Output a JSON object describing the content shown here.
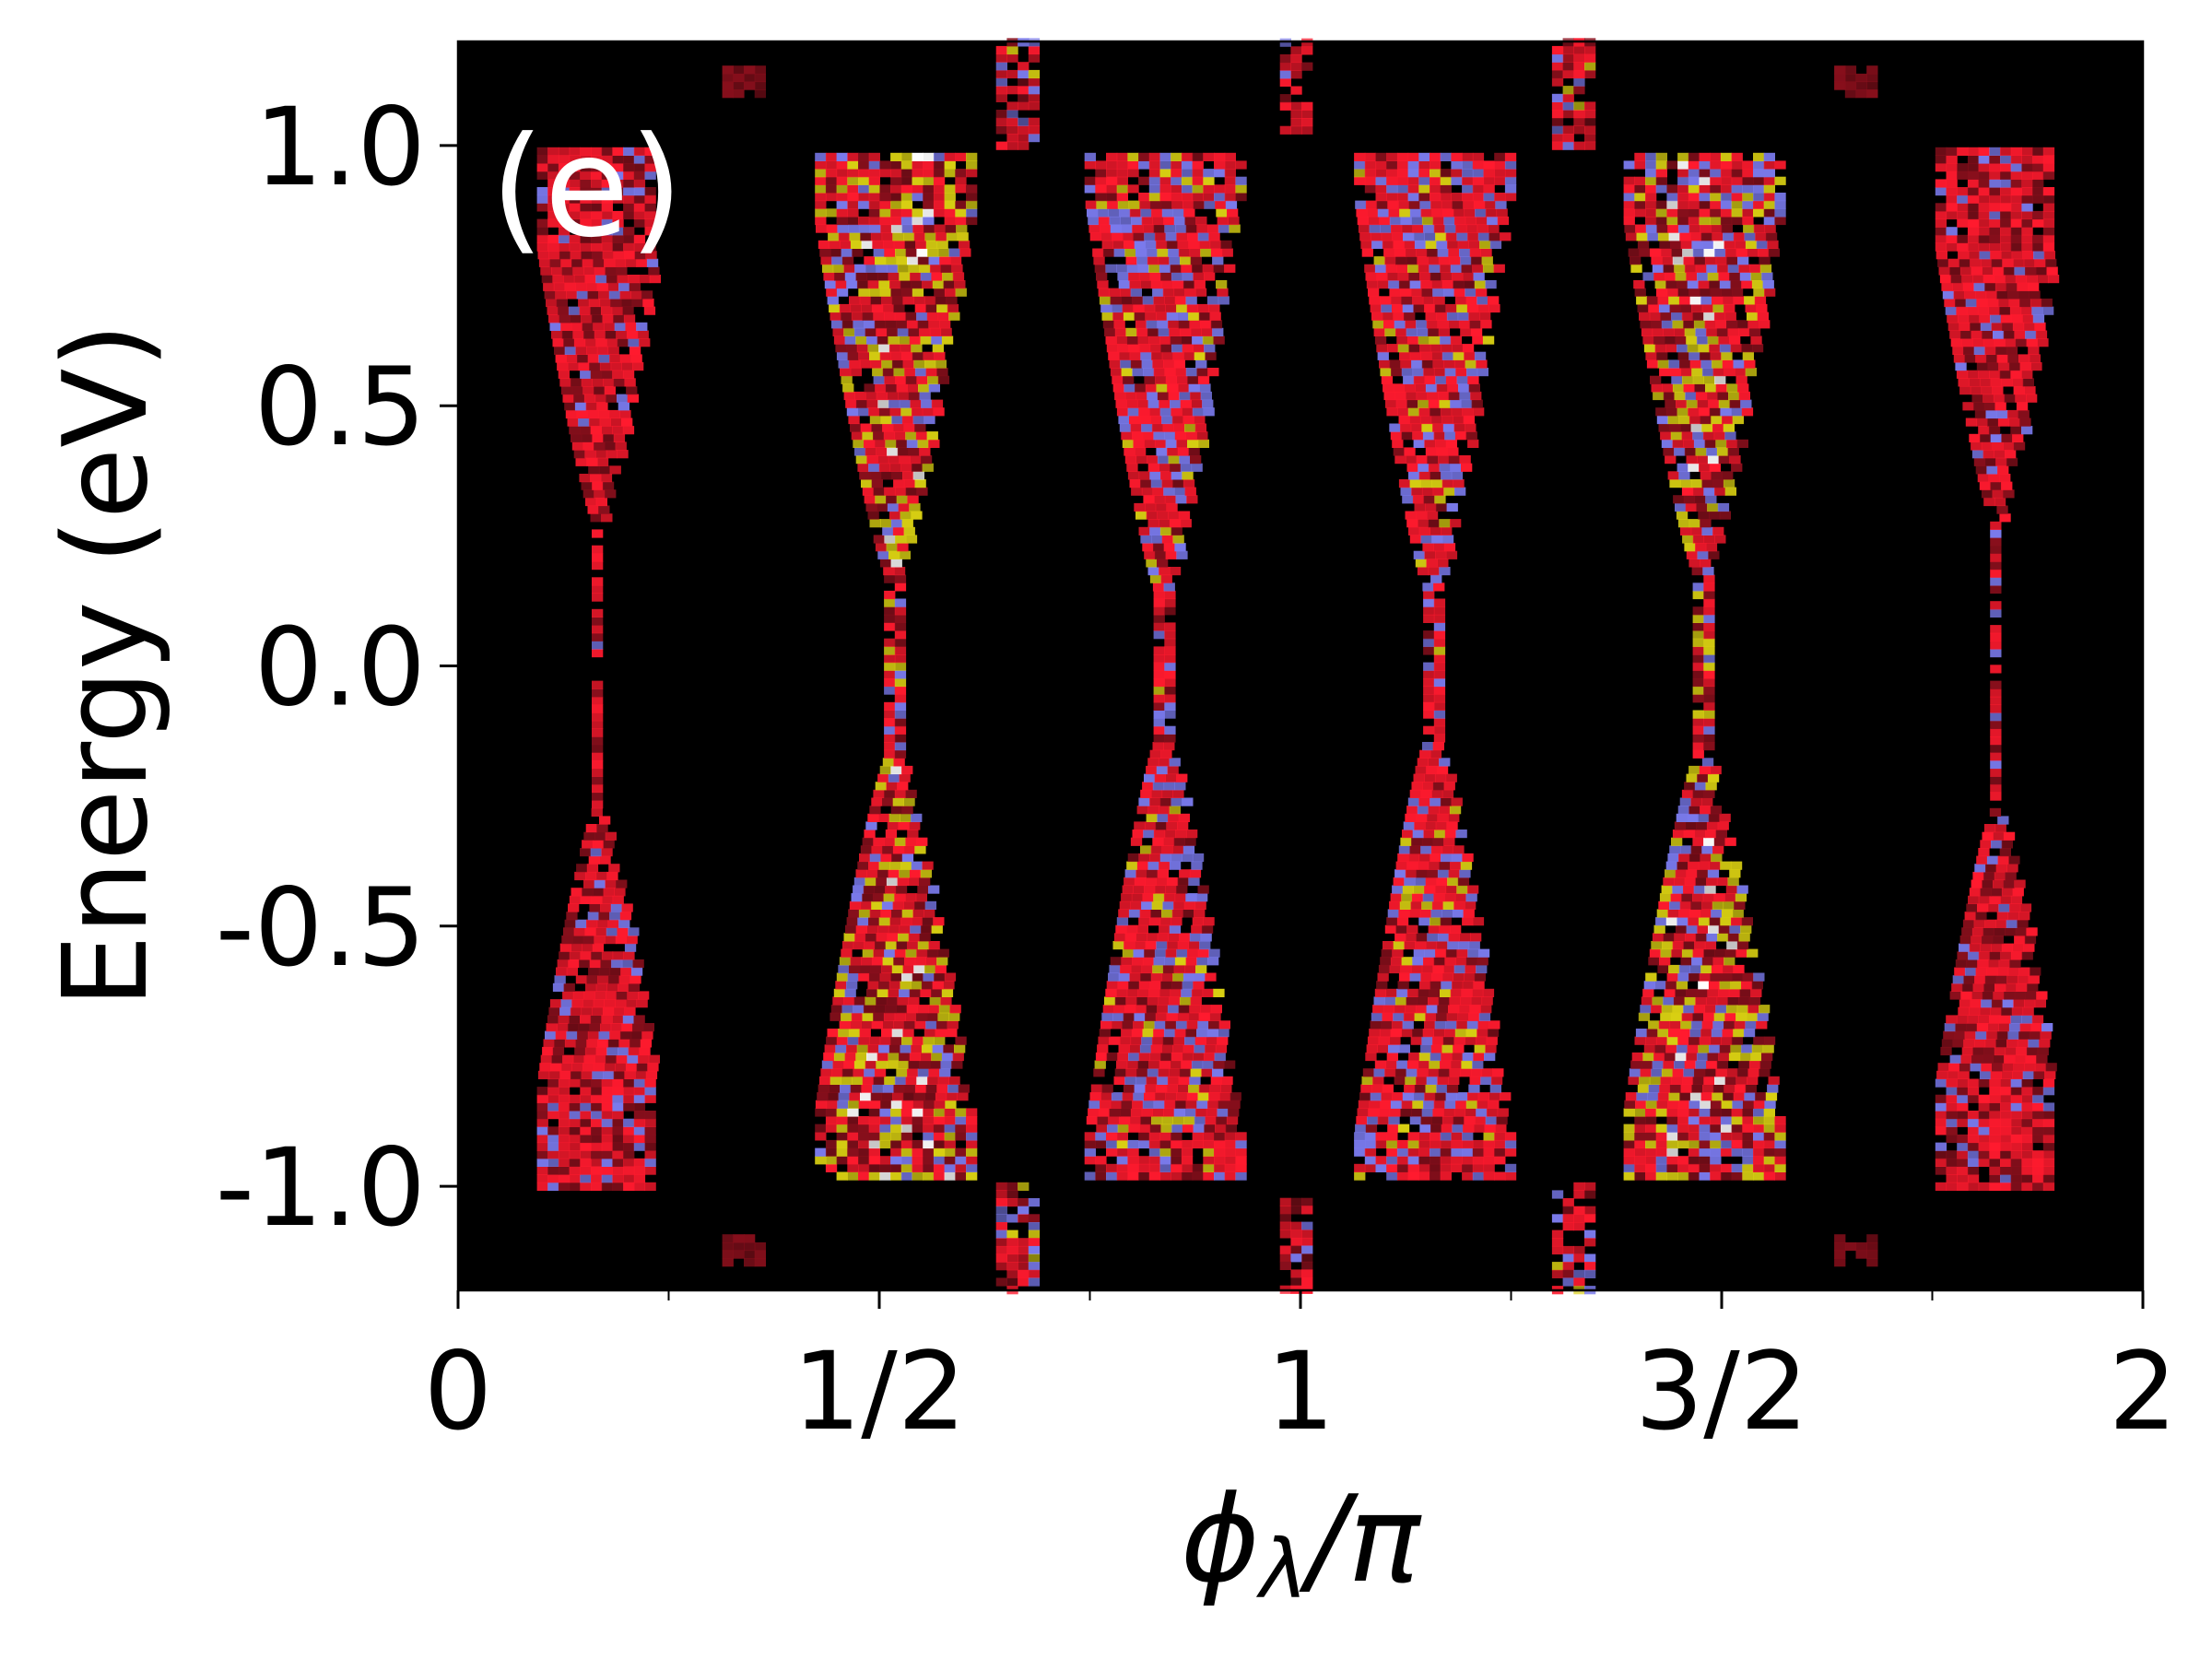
{
  "chart_data": {
    "type": "heatmap",
    "panel_label": "(e)",
    "xlabel": "ϕλ/π",
    "xlabel_main": "ϕ",
    "xlabel_sub": "λ",
    "xlabel_tail": "/π",
    "ylabel": "Energy (eV)",
    "xlim": [
      0,
      2
    ],
    "ylim": [
      -1.2,
      1.2
    ],
    "x_ticks": [
      {
        "value": 0,
        "label": "0"
      },
      {
        "value": 0.5,
        "label": "1/2"
      },
      {
        "value": 1,
        "label": "1"
      },
      {
        "value": 1.5,
        "label": "3/2"
      },
      {
        "value": 2,
        "label": "2"
      }
    ],
    "x_minor_ticks": [
      0.25,
      0.75,
      1.25,
      1.75
    ],
    "y_ticks": [
      {
        "value": 1.0,
        "label": "1.0"
      },
      {
        "value": 0.5,
        "label": "0.5"
      },
      {
        "value": 0.0,
        "label": "0.0"
      },
      {
        "value": -0.5,
        "label": "-0.5"
      },
      {
        "value": -1.0,
        "label": "-1.0"
      }
    ],
    "grid": false,
    "colors": {
      "background": "#000000",
      "red": "#ff1a2e",
      "dark_red": "#8a0f1c",
      "blue": "#7a7aec",
      "yellow": "#d8cf12",
      "white": "#ffffff"
    },
    "bands": [
      {
        "x": 0.17,
        "min_half_width": 0.005,
        "max_half_width": 0.07,
        "peak_energy": 0.8,
        "energy_limit": 1.0,
        "pinch_energy": 0.28,
        "mix": "red"
      },
      {
        "x": 0.52,
        "min_half_width": 0.008,
        "max_half_width": 0.09,
        "peak_energy": 0.85,
        "energy_limit": 0.98,
        "pinch_energy": 0.18,
        "mix": "yellow"
      },
      {
        "x": 0.84,
        "min_half_width": 0.008,
        "max_half_width": 0.09,
        "peak_energy": 0.9,
        "energy_limit": 0.98,
        "pinch_energy": 0.15,
        "mix": "blue"
      },
      {
        "x": 1.16,
        "min_half_width": 0.008,
        "max_half_width": 0.09,
        "peak_energy": 0.9,
        "energy_limit": 0.98,
        "pinch_energy": 0.15,
        "mix": "blue"
      },
      {
        "x": 1.48,
        "min_half_width": 0.008,
        "max_half_width": 0.09,
        "peak_energy": 0.85,
        "energy_limit": 0.98,
        "pinch_energy": 0.18,
        "mix": "yellow"
      },
      {
        "x": 1.83,
        "min_half_width": 0.005,
        "max_half_width": 0.07,
        "peak_energy": 0.8,
        "energy_limit": 1.0,
        "pinch_energy": 0.28,
        "mix": "red"
      }
    ],
    "edge_blobs": [
      {
        "x": 0.67,
        "half_width": 0.025,
        "e_min": 1.0,
        "e_max": 1.2,
        "mix": "blue"
      },
      {
        "x": 1.0,
        "half_width": 0.018,
        "e_min": 1.03,
        "e_max": 1.2,
        "mix": "red"
      },
      {
        "x": 1.33,
        "half_width": 0.025,
        "e_min": 1.0,
        "e_max": 1.2,
        "mix": "blue"
      },
      {
        "x": 0.34,
        "half_width": 0.02,
        "e_min": 1.1,
        "e_max": 1.15,
        "mix": "faint"
      },
      {
        "x": 1.66,
        "half_width": 0.02,
        "e_min": 1.1,
        "e_max": 1.15,
        "mix": "faint"
      }
    ]
  }
}
